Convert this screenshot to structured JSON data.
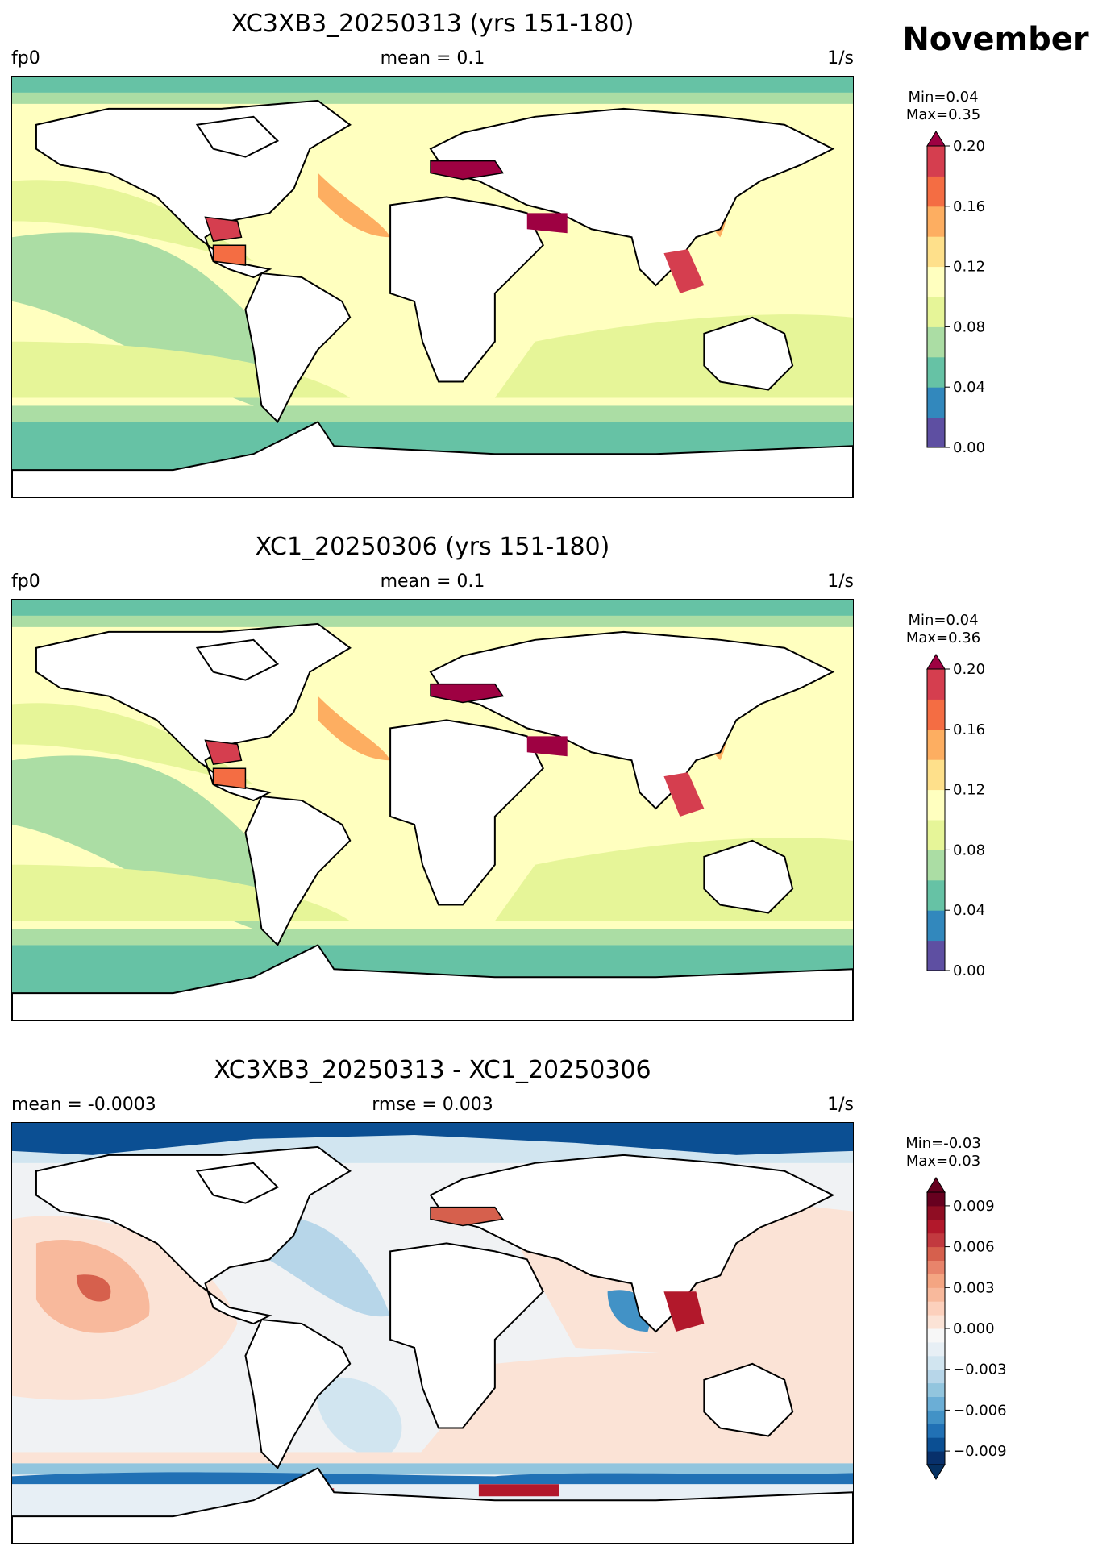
{
  "month": "November",
  "panels": [
    {
      "title": "XC3XB3_20250313 (yrs 151-180)",
      "left_label": "fp0",
      "center_label": "mean = 0.1",
      "right_label": "1/s",
      "min_text": "Min=0.04",
      "max_text": "Max=0.35",
      "colorbar": {
        "ticks": [
          "0.00",
          "0.04",
          "0.08",
          "0.12",
          "0.16",
          "0.20"
        ],
        "levels": [
          0.0,
          0.02,
          0.04,
          0.06,
          0.08,
          0.1,
          0.12,
          0.14,
          0.16,
          0.18,
          0.2
        ],
        "colors": [
          "#5e4fa2",
          "#3288bd",
          "#66c2a5",
          "#abdda4",
          "#e6f598",
          "#ffffbf",
          "#fee08b",
          "#fdae61",
          "#f46d43",
          "#d53e4f"
        ],
        "extend_max_color": "#9e0142"
      }
    },
    {
      "title": "XC1_20250306 (yrs 151-180)",
      "left_label": "fp0",
      "center_label": "mean = 0.1",
      "right_label": "1/s",
      "min_text": "Min=0.04",
      "max_text": "Max=0.36",
      "colorbar": {
        "ticks": [
          "0.00",
          "0.04",
          "0.08",
          "0.12",
          "0.16",
          "0.20"
        ],
        "levels": [
          0.0,
          0.02,
          0.04,
          0.06,
          0.08,
          0.1,
          0.12,
          0.14,
          0.16,
          0.18,
          0.2
        ],
        "colors": [
          "#5e4fa2",
          "#3288bd",
          "#66c2a5",
          "#abdda4",
          "#e6f598",
          "#ffffbf",
          "#fee08b",
          "#fdae61",
          "#f46d43",
          "#d53e4f"
        ],
        "extend_max_color": "#9e0142"
      }
    },
    {
      "title": "XC3XB3_20250313 - XC1_20250306",
      "left_label": "mean = -0.0003",
      "center_label": "rmse = 0.003",
      "right_label": "1/s",
      "min_text": "Min=-0.03",
      "max_text": "Max=0.03",
      "colorbar": {
        "ticks": [
          "−0.009",
          "−0.006",
          "−0.003",
          "0.000",
          "0.003",
          "0.006",
          "0.009"
        ],
        "colors": [
          "#08306b",
          "#0b4f93",
          "#2171b5",
          "#4292c6",
          "#6baed6",
          "#92c5de",
          "#b7d6e9",
          "#d1e5f0",
          "#e7eff5",
          "#f7f7f7",
          "#fbe3d6",
          "#fcd0bc",
          "#f8b99c",
          "#f4a582",
          "#e8846b",
          "#d6604d",
          "#c2393f",
          "#b2182b",
          "#8f0d23",
          "#67001f"
        ],
        "extend_min_color": "#053061",
        "extend_max_color": "#67001f"
      }
    }
  ]
}
